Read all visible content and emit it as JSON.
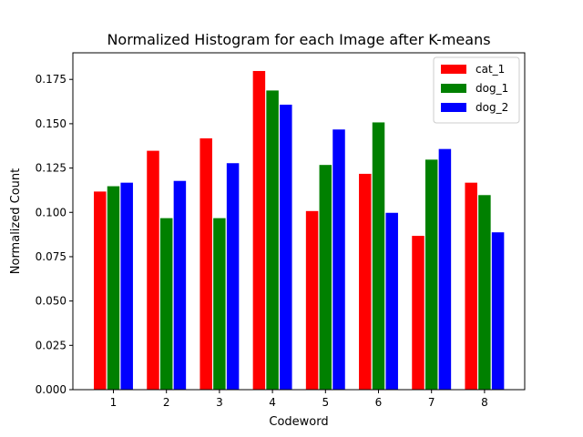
{
  "chart_data": {
    "type": "bar",
    "title": "Normalized Histogram for each Image after K-means",
    "xlabel": "Codeword",
    "ylabel": "Normalized Count",
    "categories": [
      "1",
      "2",
      "3",
      "4",
      "5",
      "6",
      "7",
      "8"
    ],
    "ylim": [
      0,
      0.19
    ],
    "yticks": [
      "0.000",
      "0.025",
      "0.050",
      "0.075",
      "0.100",
      "0.125",
      "0.150",
      "0.175"
    ],
    "ytick_values": [
      0,
      0.025,
      0.05,
      0.075,
      0.1,
      0.125,
      0.15,
      0.175
    ],
    "grid": false,
    "legend": "top-right",
    "series": [
      {
        "name": "cat_1",
        "color": "#ff0000",
        "values": [
          0.112,
          0.135,
          0.142,
          0.18,
          0.101,
          0.122,
          0.087,
          0.117
        ]
      },
      {
        "name": "dog_1",
        "color": "#008000",
        "values": [
          0.115,
          0.097,
          0.097,
          0.169,
          0.127,
          0.151,
          0.13,
          0.11
        ]
      },
      {
        "name": "dog_2",
        "color": "#0000ff",
        "values": [
          0.117,
          0.118,
          0.128,
          0.161,
          0.147,
          0.1,
          0.136,
          0.089
        ]
      }
    ]
  }
}
